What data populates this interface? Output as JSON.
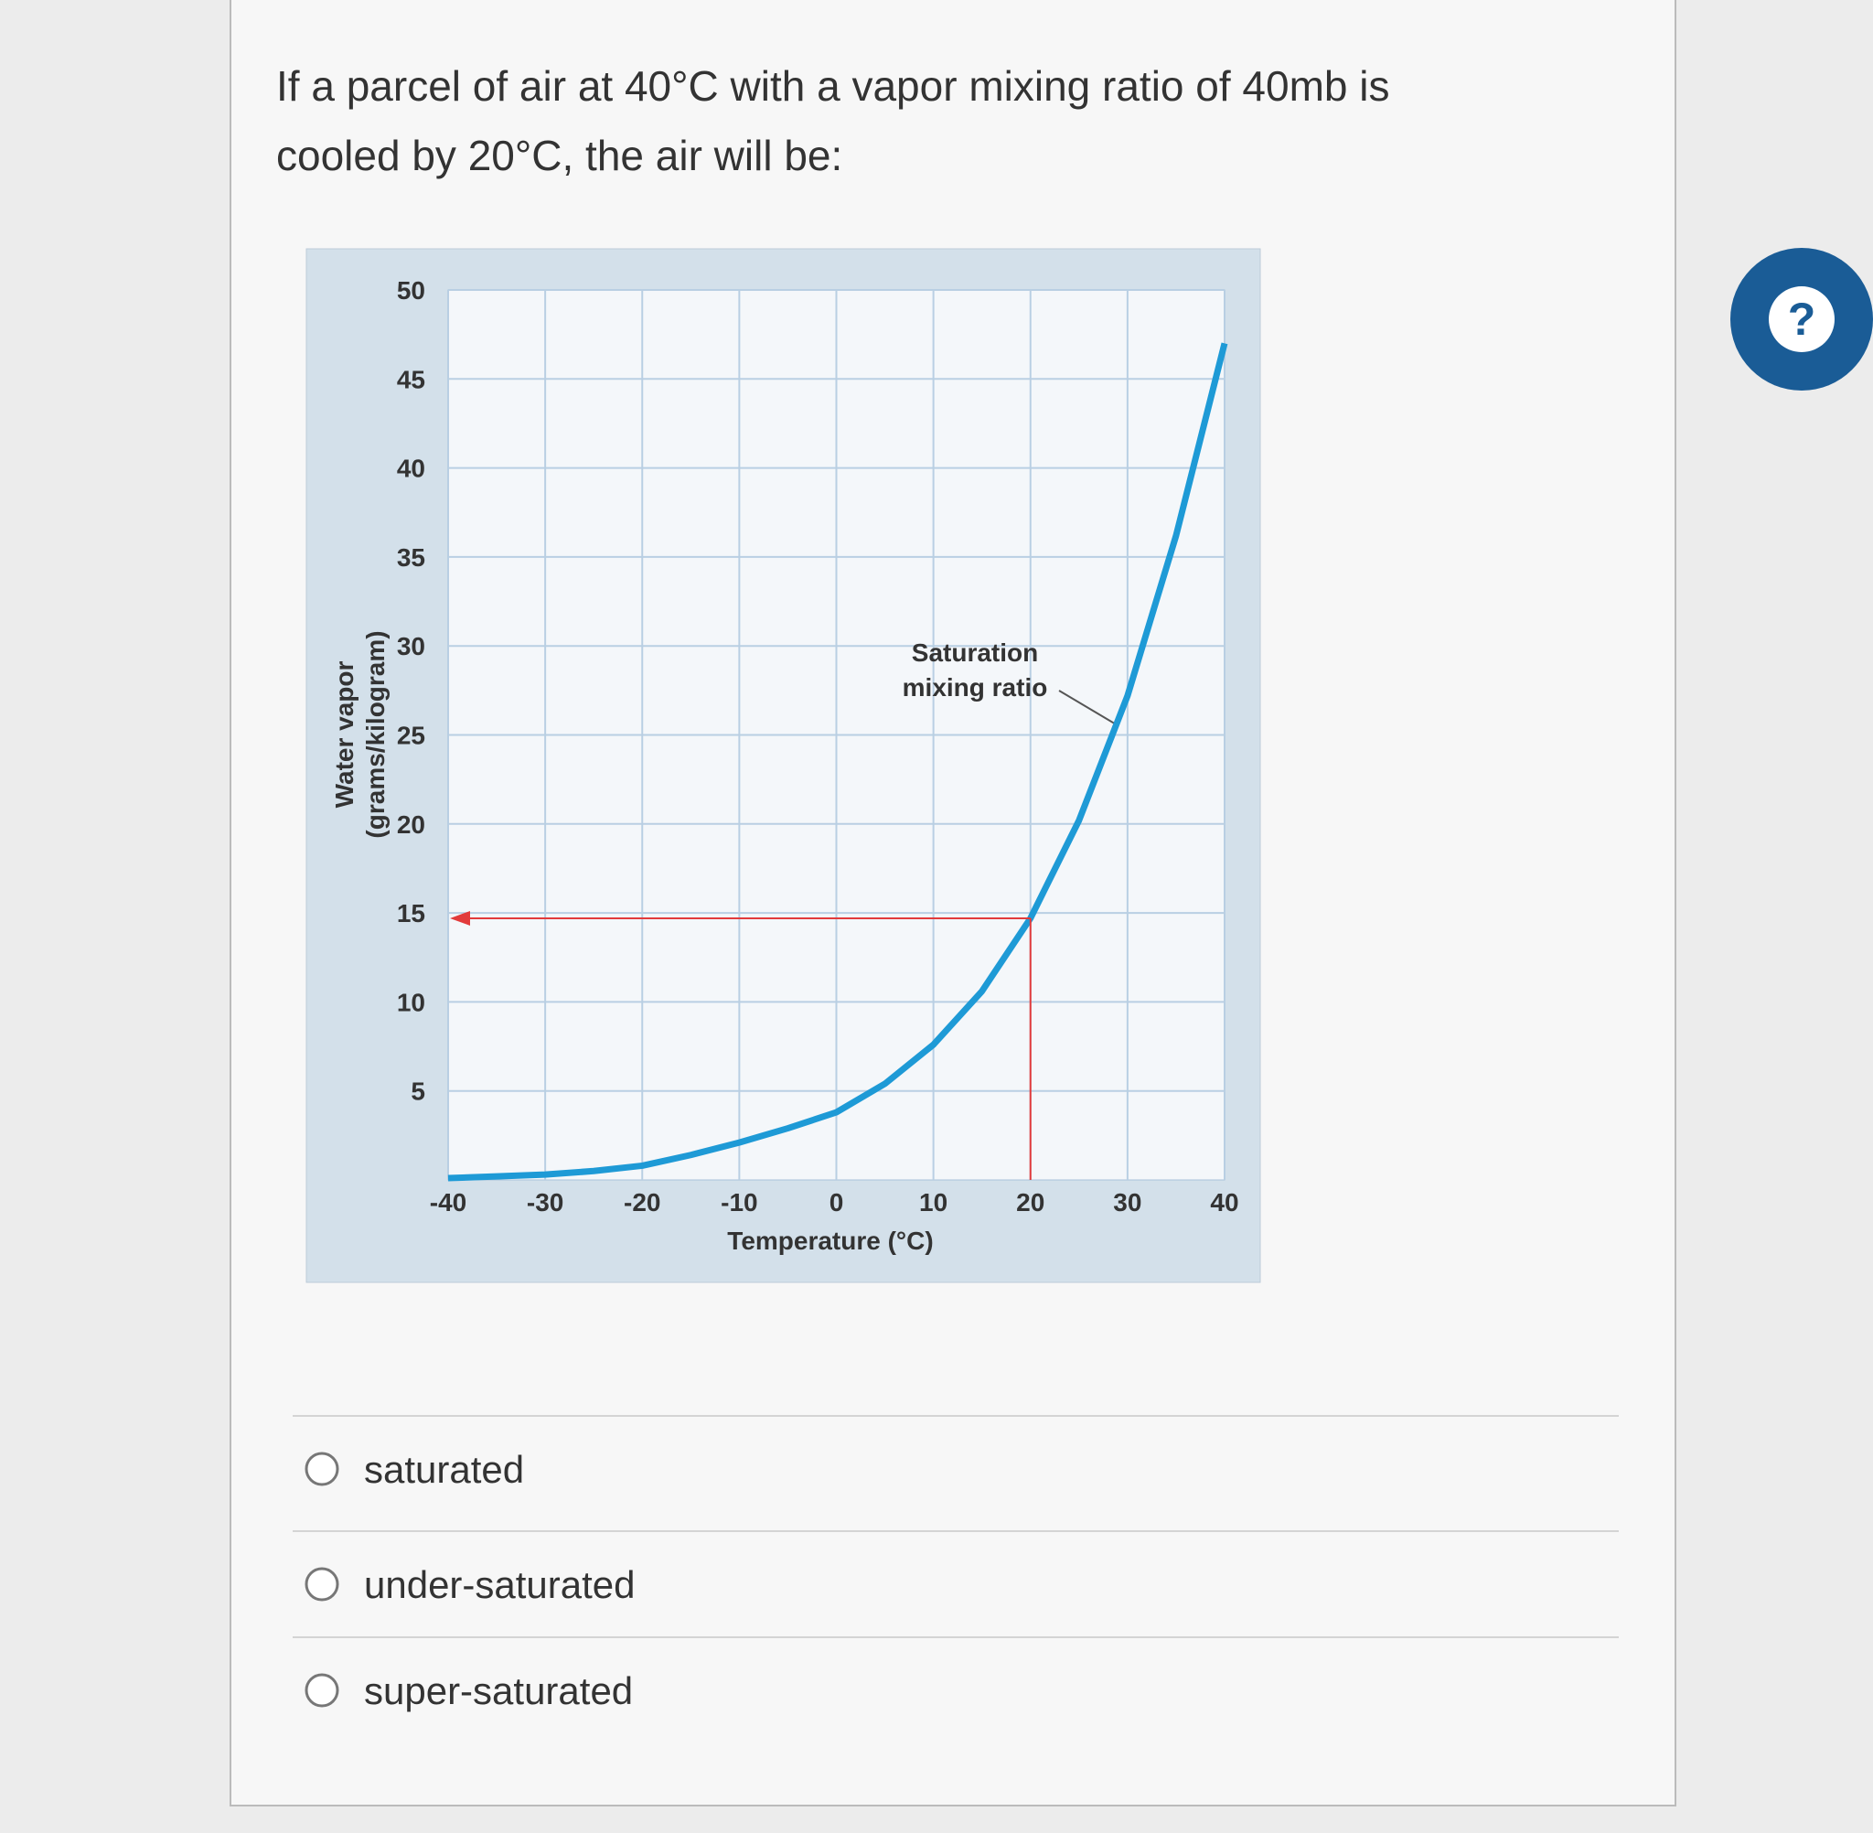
{
  "question": "If a parcel of air at 40°C with a vapor mixing ratio of 40mb is cooled by 20°C, the air will be:",
  "help": "?",
  "chart_data": {
    "type": "line",
    "y_label": [
      "Water vapor",
      "(grams/kilogram)"
    ],
    "x_label": "Temperature (°C)",
    "annotation": [
      "Saturation",
      "mixing ratio"
    ],
    "x": [
      -40,
      -35,
      -30,
      -25,
      -20,
      -15,
      -10,
      -5,
      0,
      5,
      10,
      15,
      20,
      25,
      30,
      35,
      40
    ],
    "series": [
      {
        "name": "Saturation mixing ratio",
        "color": "#1e9ad6",
        "values": [
          0.1,
          0.2,
          0.3,
          0.5,
          0.8,
          1.4,
          2.1,
          2.9,
          3.8,
          5.4,
          7.6,
          10.6,
          14.7,
          20.2,
          27.2,
          36.2,
          47
        ]
      }
    ],
    "reference": {
      "x": 20,
      "y": 14.7,
      "color": "#e23b3b"
    },
    "xlim": [
      -40,
      40
    ],
    "ylim": [
      0,
      50
    ],
    "xticks": [
      -40,
      -30,
      -20,
      -10,
      0,
      10,
      20,
      30,
      40
    ],
    "yticks": [
      5,
      10,
      15,
      20,
      25,
      30,
      35,
      40,
      45,
      50
    ],
    "grid": true
  },
  "options": [
    "saturated",
    "under-saturated",
    "super-saturated"
  ]
}
